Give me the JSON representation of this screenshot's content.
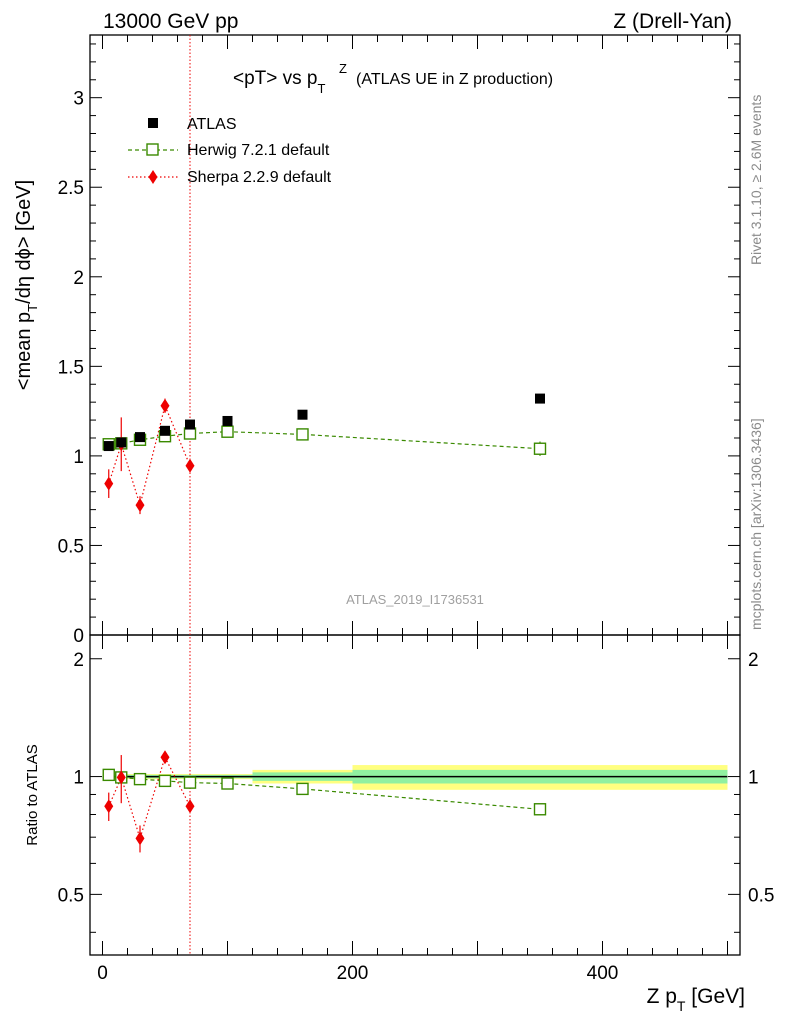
{
  "header": {
    "energy_label": "13000 GeV pp",
    "process_label": "Z (Drell-Yan)"
  },
  "plot_title": {
    "main": "<pT> vs p",
    "sup": "Z",
    "sub": "T",
    "suffix": "(ATLAS UE in Z production)"
  },
  "side_text": {
    "rivet": "Rivet 3.1.10, ≥ 2.6M events",
    "mcplots": "mcplots.cern.ch [arXiv:1306.3436]"
  },
  "watermark": "ATLAS_2019_I1736531",
  "axes": {
    "y_main_label": "<mean p_T/dη dϕ> [GeV]",
    "y_main_label_parts": {
      "a": "<mean p",
      "b": "T",
      "c": "/dη dϕ> [GeV]"
    },
    "y_ratio_label": "Ratio to ATLAS",
    "x_label_parts": {
      "a": "Z p",
      "b": "T",
      "c": " [GeV]"
    }
  },
  "colors": {
    "atlas": "#000000",
    "herwig": "#3a8a00",
    "sherpa": "#ee0000",
    "band_inner": "#90f0a0",
    "band_outer": "#ffff80"
  },
  "chart_data": [
    {
      "type": "scatter",
      "panel": "main",
      "xlim": [
        -10,
        510
      ],
      "ylim": [
        0,
        3.35
      ],
      "y_ticks": [
        0,
        0.5,
        1,
        1.5,
        2,
        2.5,
        3
      ],
      "y_tick_labels": [
        "0",
        "0.5",
        "1",
        "1.5",
        "2",
        "2.5",
        "3"
      ],
      "vline_x": 70,
      "series": [
        {
          "name": "ATLAS",
          "marker": "filled-square",
          "line": "none",
          "x": [
            5,
            15,
            30,
            50,
            70,
            100,
            160,
            350
          ],
          "y": [
            1.055,
            1.075,
            1.105,
            1.14,
            1.175,
            1.195,
            1.23,
            1.32
          ],
          "err": [
            0.01,
            0.01,
            0.01,
            0.01,
            0.01,
            0.01,
            0.01,
            0.01
          ]
        },
        {
          "name": "Herwig 7.2.1 default",
          "marker": "open-square",
          "line": "dashed",
          "x": [
            5,
            15,
            30,
            50,
            70,
            100,
            160,
            350
          ],
          "y": [
            1.065,
            1.07,
            1.09,
            1.11,
            1.125,
            1.135,
            1.12,
            1.04
          ],
          "err": [
            0.01,
            0.01,
            0.01,
            0.01,
            0.01,
            0.01,
            0.01,
            0.04
          ]
        },
        {
          "name": "Sherpa 2.2.9 default",
          "marker": "filled-diamond",
          "line": "dotted",
          "x": [
            5,
            15,
            30,
            50,
            70
          ],
          "y": [
            0.845,
            1.065,
            0.725,
            1.28,
            0.945
          ],
          "err": [
            0.08,
            0.15,
            0.05,
            0.04,
            0.0
          ]
        }
      ]
    },
    {
      "type": "scatter",
      "panel": "ratio",
      "xlim": [
        -10,
        510
      ],
      "ylim": [
        0.35,
        2.3
      ],
      "y_ticks": [
        0.5,
        1,
        2
      ],
      "y_tick_labels": [
        "0.5",
        "1",
        "2"
      ],
      "x_ticks": [
        0,
        200,
        400
      ],
      "x_tick_labels": [
        "0",
        "200",
        "400"
      ],
      "reference_line": 1,
      "uncertainty_bands": [
        {
          "x0": 0,
          "x1": 120,
          "inner": [
            0.99,
            1.01
          ],
          "outer": [
            0.985,
            1.015
          ]
        },
        {
          "x0": 120,
          "x1": 200,
          "inner": [
            0.975,
            1.025
          ],
          "outer": [
            0.96,
            1.04
          ]
        },
        {
          "x0": 200,
          "x1": 500,
          "inner": [
            0.96,
            1.04
          ],
          "outer": [
            0.925,
            1.07
          ]
        }
      ],
      "series": [
        {
          "name": "Herwig 7.2.1 default",
          "x": [
            5,
            15,
            30,
            50,
            70,
            100,
            160,
            350
          ],
          "y": [
            1.01,
            0.995,
            0.985,
            0.975,
            0.965,
            0.96,
            0.93,
            0.825
          ],
          "err": [
            0.01,
            0.01,
            0.01,
            0.01,
            0.01,
            0.01,
            0.01,
            0.025
          ]
        },
        {
          "name": "Sherpa 2.2.9 default",
          "x": [
            5,
            15,
            30,
            50,
            70
          ],
          "y": [
            0.84,
            0.995,
            0.695,
            1.12,
            0.84
          ],
          "err": [
            0.07,
            0.14,
            0.055,
            0.03,
            0.0
          ]
        }
      ]
    }
  ]
}
